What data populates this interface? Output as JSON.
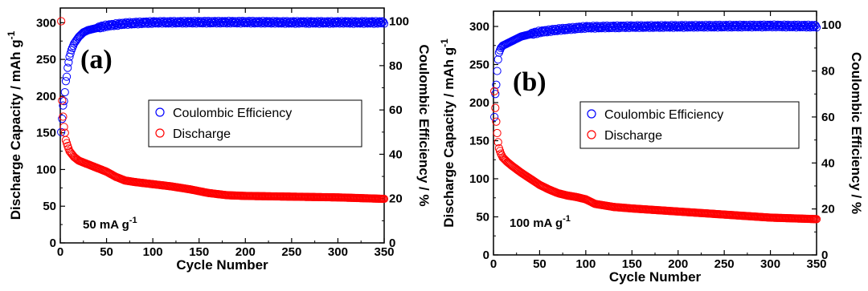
{
  "chart_data": [
    {
      "type": "scatter",
      "panel_label": "(a)",
      "annotation": {
        "base": "50 mA g",
        "sup": "-1"
      },
      "xlabel": "Cycle Number",
      "ylabel_left": {
        "base": "Discharge Capacity / mAh g",
        "sup": "-1"
      },
      "ylabel_right": "Coulombic Efficiency / %",
      "xlim": [
        0,
        350
      ],
      "ylim_left": [
        0,
        320
      ],
      "ylim_right": [
        0,
        106
      ],
      "x_ticks": [
        "0",
        "50",
        "100",
        "150",
        "200",
        "250",
        "300",
        "350"
      ],
      "y_left_ticks": [
        "0",
        "50",
        "100",
        "150",
        "200",
        "250",
        "300"
      ],
      "y_right_ticks": [
        "0",
        "20",
        "40",
        "60",
        "80",
        "100"
      ],
      "legend": {
        "position": "center-right",
        "entries": [
          "Coulombic Efficiency",
          "Discharge"
        ]
      },
      "series": [
        {
          "name": "Coulombic Efficiency",
          "axis": "right",
          "color": "#0000ff",
          "points": [
            [
              1,
              50
            ],
            [
              2,
              56
            ],
            [
              3,
              62
            ],
            [
              4,
              64
            ],
            [
              5,
              68
            ],
            [
              6,
              73
            ],
            [
              7,
              75
            ],
            [
              8,
              79
            ],
            [
              10,
              84
            ],
            [
              12,
              87
            ],
            [
              15,
              90
            ],
            [
              20,
              93
            ],
            [
              25,
              95
            ],
            [
              30,
              96
            ],
            [
              40,
              97
            ],
            [
              50,
              98
            ],
            [
              70,
              99
            ],
            [
              100,
              99.5
            ],
            [
              150,
              99.6
            ],
            [
              200,
              99.6
            ],
            [
              250,
              99.5
            ],
            [
              300,
              99.5
            ],
            [
              350,
              99.5
            ]
          ]
        },
        {
          "name": "Discharge",
          "axis": "left",
          "color": "#ff0000",
          "points": [
            [
              1,
              302
            ],
            [
              2,
              194
            ],
            [
              3,
              172
            ],
            [
              4,
              158
            ],
            [
              5,
              150
            ],
            [
              6,
              140
            ],
            [
              8,
              132
            ],
            [
              10,
              125
            ],
            [
              15,
              117
            ],
            [
              20,
              112
            ],
            [
              30,
              107
            ],
            [
              40,
              102
            ],
            [
              50,
              97
            ],
            [
              60,
              90
            ],
            [
              70,
              85
            ],
            [
              80,
              83
            ],
            [
              100,
              80
            ],
            [
              120,
              77
            ],
            [
              140,
              73
            ],
            [
              160,
              68
            ],
            [
              180,
              65
            ],
            [
              200,
              64
            ],
            [
              250,
              63
            ],
            [
              300,
              62
            ],
            [
              350,
              60
            ]
          ]
        }
      ]
    },
    {
      "type": "scatter",
      "panel_label": "(b)",
      "annotation": {
        "base": "100 mA g",
        "sup": "-1"
      },
      "xlabel": "Cycle Number",
      "ylabel_left": {
        "base": "Discharge Capacity / mAh g",
        "sup": "-1"
      },
      "ylabel_right": "Coulombic Efficiency / %",
      "xlim": [
        0,
        350
      ],
      "ylim_left": [
        0,
        320
      ],
      "ylim_right": [
        0,
        106
      ],
      "x_ticks": [
        "0",
        "50",
        "100",
        "150",
        "200",
        "250",
        "300",
        "350"
      ],
      "y_left_ticks": [
        "0",
        "50",
        "100",
        "150",
        "200",
        "250",
        "300"
      ],
      "y_right_ticks": [
        "0",
        "20",
        "40",
        "60",
        "80",
        "100"
      ],
      "legend": {
        "position": "center-right",
        "entries": [
          "Coulombic Efficiency",
          "Discharge"
        ]
      },
      "series": [
        {
          "name": "Coulombic Efficiency",
          "axis": "right",
          "color": "#0000ff",
          "points": [
            [
              1,
              60
            ],
            [
              2,
              70
            ],
            [
              3,
              74
            ],
            [
              4,
              80
            ],
            [
              5,
              85
            ],
            [
              6,
              88
            ],
            [
              8,
              90
            ],
            [
              10,
              91
            ],
            [
              15,
              92
            ],
            [
              20,
              93
            ],
            [
              30,
              95
            ],
            [
              40,
              96
            ],
            [
              50,
              97
            ],
            [
              70,
              98
            ],
            [
              100,
              99
            ],
            [
              150,
              99.3
            ],
            [
              200,
              99.4
            ],
            [
              250,
              99.5
            ],
            [
              300,
              99.6
            ],
            [
              350,
              99.5
            ]
          ]
        },
        {
          "name": "Discharge",
          "axis": "left",
          "color": "#ff0000",
          "points": [
            [
              1,
              215
            ],
            [
              2,
              193
            ],
            [
              3,
              175
            ],
            [
              4,
              160
            ],
            [
              5,
              148
            ],
            [
              6,
              140
            ],
            [
              8,
              133
            ],
            [
              10,
              128
            ],
            [
              15,
              122
            ],
            [
              20,
              117
            ],
            [
              30,
              108
            ],
            [
              40,
              100
            ],
            [
              50,
              92
            ],
            [
              60,
              86
            ],
            [
              70,
              81
            ],
            [
              80,
              78
            ],
            [
              90,
              76
            ],
            [
              100,
              73
            ],
            [
              110,
              67
            ],
            [
              130,
              63
            ],
            [
              150,
              61
            ],
            [
              200,
              57
            ],
            [
              250,
              53
            ],
            [
              300,
              49
            ],
            [
              350,
              47
            ]
          ]
        }
      ]
    }
  ]
}
